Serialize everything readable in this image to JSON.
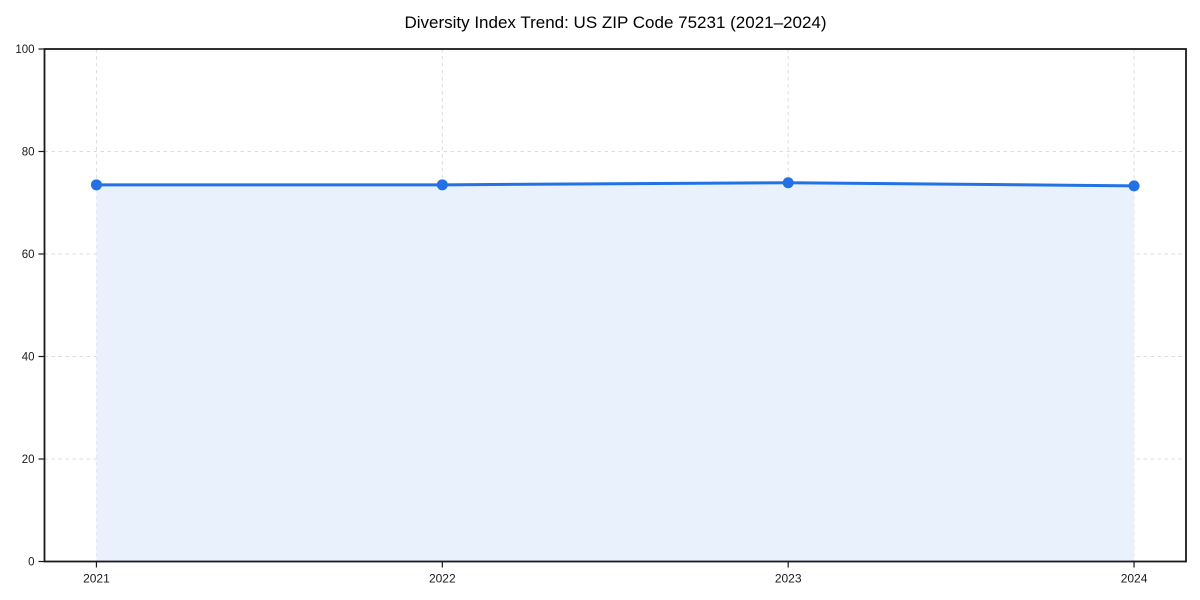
{
  "page": {
    "background": "#ffffff"
  },
  "chart_data": {
    "type": "line",
    "title": "Diversity Index Trend: US ZIP Code 75231 (2021–2024)",
    "xlabel": "",
    "ylabel": "",
    "categories": [
      "2021",
      "2022",
      "2023",
      "2024"
    ],
    "series": [
      {
        "name": "Diversity Index",
        "values": [
          73.5,
          73.5,
          73.9,
          73.3
        ]
      }
    ],
    "ylim": [
      0,
      100
    ],
    "yticks": [
      0,
      20,
      40,
      60,
      80,
      100
    ],
    "grid": true,
    "grid_style": "dashed",
    "area_fill": true,
    "markers": "circle",
    "legend": "none",
    "colors": {
      "line": "#2272e6",
      "marker": "#2272e6",
      "fill": "#e9f1fc",
      "grid": "#dcdcdc",
      "spine": "#1a1a1a",
      "tick_label": "#1a1a1a",
      "title": "#000000"
    }
  }
}
